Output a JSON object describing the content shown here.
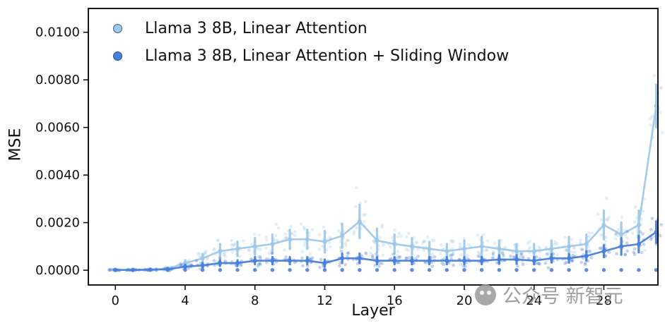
{
  "chart_data": {
    "type": "line",
    "title": "",
    "xlabel": "Layer",
    "ylabel": "MSE",
    "grid": false,
    "legend_position": "upper left",
    "x": [
      0,
      1,
      2,
      3,
      4,
      5,
      6,
      7,
      8,
      9,
      10,
      11,
      12,
      13,
      14,
      15,
      16,
      17,
      18,
      19,
      20,
      21,
      22,
      23,
      24,
      25,
      26,
      27,
      28,
      29,
      30,
      31
    ],
    "xticks": [
      0,
      4,
      8,
      12,
      16,
      20,
      24,
      28
    ],
    "yticks": [
      0.0,
      0.002,
      0.004,
      0.006,
      0.008,
      0.01
    ],
    "xlim": [
      -1.55,
      31.1
    ],
    "ylim": [
      -0.00062,
      0.011
    ],
    "series": [
      {
        "name": "Llama 3 8B, Linear Attention",
        "color": "#9fc8e8",
        "edge": "#35618f",
        "mean": [
          2e-05,
          2e-05,
          3e-05,
          6e-05,
          0.0003,
          0.0005,
          0.0008,
          0.0009,
          0.001,
          0.0011,
          0.0013,
          0.0013,
          0.0012,
          0.00145,
          0.00205,
          0.00125,
          0.0011,
          0.001,
          0.0009,
          0.0008,
          0.0009,
          0.001,
          0.0009,
          0.0008,
          0.0008,
          0.0009,
          0.001,
          0.0011,
          0.0019,
          0.0015,
          0.0019,
          0.0069
        ],
        "err": [
          2e-05,
          2e-05,
          3e-05,
          5e-05,
          0.00012,
          0.00018,
          0.0003,
          0.0003,
          0.00035,
          0.0004,
          0.0004,
          0.0004,
          0.00045,
          0.0005,
          0.0007,
          0.0005,
          0.0004,
          0.00035,
          0.0003,
          0.0003,
          0.00035,
          0.0004,
          0.00035,
          0.0003,
          0.0003,
          0.00035,
          0.0004,
          0.0004,
          0.0006,
          0.0005,
          0.0006,
          0.0009
        ]
      },
      {
        "name": "Llama 3 8B, Linear Attention + Sliding Window",
        "color": "#4a80d9",
        "edge": "#1d4e9e",
        "mean": [
          1e-05,
          1e-05,
          2e-05,
          4e-05,
          0.00015,
          0.0002,
          0.0003,
          0.0003,
          0.0004,
          0.0004,
          0.0004,
          0.0004,
          0.0003,
          0.0005,
          0.0005,
          0.0004,
          0.0004,
          0.0004,
          0.0004,
          0.0004,
          0.0004,
          0.0004,
          0.00045,
          0.00045,
          0.0004,
          0.0005,
          0.0005,
          0.0006,
          0.0008,
          0.001,
          0.0011,
          0.0016
        ],
        "err": [
          1e-05,
          1e-05,
          2e-05,
          3e-05,
          8e-05,
          0.0001,
          0.00012,
          0.00012,
          0.00015,
          0.00015,
          0.00015,
          0.00015,
          0.00015,
          0.0002,
          0.0002,
          0.00015,
          0.00015,
          0.00015,
          0.00015,
          0.00015,
          0.00015,
          0.00015,
          0.00018,
          0.00018,
          0.00015,
          0.00018,
          0.00018,
          0.0002,
          0.00025,
          0.00035,
          0.00035,
          0.00045
        ]
      }
    ]
  },
  "watermark": {
    "text": "公众号 新智元"
  }
}
